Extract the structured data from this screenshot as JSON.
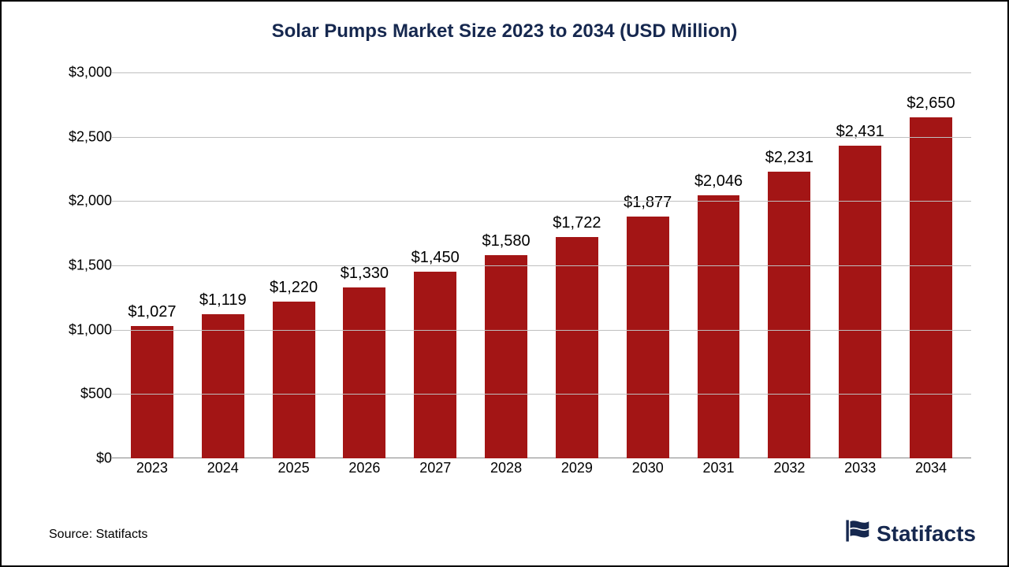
{
  "chart": {
    "type": "bar",
    "title": "Solar Pumps Market Size 2023 to 2034 (USD Million)",
    "title_fontsize": 24,
    "title_color": "#16284f",
    "background_color": "#ffffff",
    "border_color": "#000000",
    "categories": [
      "2023",
      "2024",
      "2025",
      "2026",
      "2027",
      "2028",
      "2029",
      "2030",
      "2031",
      "2032",
      "2033",
      "2034"
    ],
    "values": [
      1027,
      1119,
      1220,
      1330,
      1450,
      1580,
      1722,
      1877,
      2046,
      2231,
      2431,
      2650
    ],
    "value_labels": [
      "$1,027",
      "$1,119",
      "$1,220",
      "$1,330",
      "$1,450",
      "$1,580",
      "$1,722",
      "$1,877",
      "$2,046",
      "$2,231",
      "$2,431",
      "$2,650"
    ],
    "bar_color": "#a31515",
    "bar_width": 0.6,
    "ylim": [
      0,
      3000
    ],
    "ytick_step": 500,
    "ytick_labels": [
      "$0",
      "$500",
      "$1,000",
      "$1,500",
      "$2,000",
      "$2,500",
      "$3,000"
    ],
    "ytick_fontsize": 18,
    "xtick_fontsize": 18,
    "value_label_fontsize": 20,
    "gridline_color": "#bfbfbf",
    "axis_color": "#808080",
    "label_color": "#000000"
  },
  "source_line": "Source: Statifacts",
  "source_fontsize": 16,
  "brand": {
    "name": "Statifacts",
    "fontsize": 28,
    "color": "#16284f",
    "icon_color": "#16284f"
  }
}
